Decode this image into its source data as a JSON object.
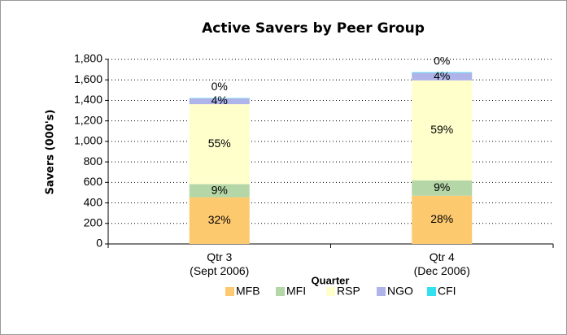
{
  "chart_data": {
    "type": "stacked_bar",
    "title": "Active Savers by Peer Group",
    "y_label": "Savers (000's)",
    "x_label": "Quarter",
    "categories": [
      "Qtr 3\n(Sept 2006)",
      "Qtr 4\n(Dec 2006)"
    ],
    "series": [
      {
        "name": "MFB",
        "color": "#fdc96f",
        "values": [
          455,
          470
        ],
        "value_labels": [
          "32%",
          "28%"
        ]
      },
      {
        "name": "MFI",
        "color": "#b5d6a6",
        "values": [
          128,
          150
        ],
        "value_labels": [
          "9%",
          "9%"
        ]
      },
      {
        "name": "RSP",
        "color": "#ffffcc",
        "values": [
          780,
          975
        ],
        "value_labels": [
          "55%",
          "59%"
        ]
      },
      {
        "name": "NGO",
        "color": "#aeb4ea",
        "values": [
          57,
          75
        ],
        "value_labels": [
          "4%",
          "4%"
        ]
      },
      {
        "name": "CFI",
        "color": "#33e0f0",
        "values": [
          3,
          5
        ],
        "value_labels": [
          "0%",
          "0%"
        ]
      }
    ],
    "ylim": [
      0,
      1800
    ],
    "yticks": [
      0,
      200,
      400,
      600,
      800,
      {
        "value": 1000,
        "label": "1,000"
      },
      {
        "value": 1200,
        "label": "1,200"
      },
      {
        "value": 1400,
        "label": "1,400"
      },
      {
        "value": 1600,
        "label": "1,600"
      },
      {
        "value": 1800,
        "label": "1,800"
      }
    ],
    "grid": true,
    "legend": "bottom"
  }
}
